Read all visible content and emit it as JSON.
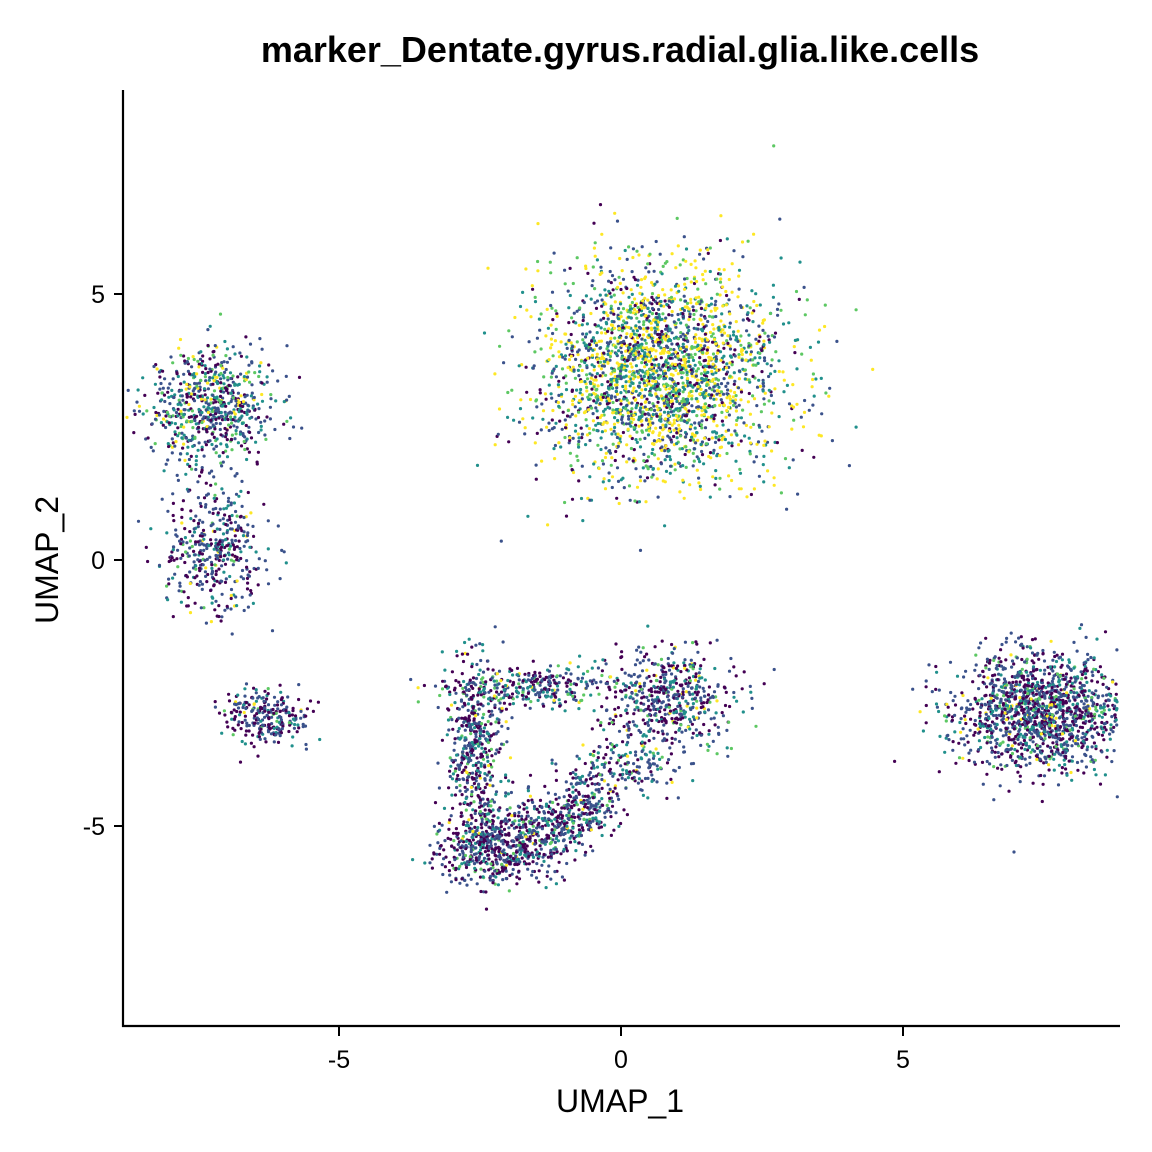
{
  "chart_data": {
    "type": "scatter",
    "title": "marker_Dentate.gyrus.radial.glia.like.cells",
    "xlabel": "UMAP_1",
    "ylabel": "UMAP_2",
    "xlim": [
      -8.8,
      8.8
    ],
    "ylim": [
      -8.8,
      8.8
    ],
    "xticks": [
      {
        "value": -5,
        "label": "-5"
      },
      {
        "value": 0,
        "label": "0"
      },
      {
        "value": 5,
        "label": "5"
      }
    ],
    "yticks": [
      {
        "value": -5,
        "label": "-5"
      },
      {
        "value": 0,
        "label": "0"
      },
      {
        "value": 5,
        "label": "5"
      }
    ],
    "grid": false,
    "legend": "none",
    "color_scale": "viridis",
    "palette": [
      "#440154",
      "#3b528b",
      "#21908c",
      "#5dc863",
      "#fde725"
    ],
    "clusters": [
      {
        "cx": -7.3,
        "cy": 2.9,
        "sx": 0.55,
        "sy": 0.55,
        "n": 700,
        "w": [
          0.22,
          0.33,
          0.25,
          0.12,
          0.08
        ]
      },
      {
        "cx": -7.2,
        "cy": 0.2,
        "sx": 0.45,
        "sy": 0.6,
        "n": 420,
        "w": [
          0.4,
          0.38,
          0.14,
          0.05,
          0.03
        ]
      },
      {
        "cx": -6.3,
        "cy": -2.95,
        "sx": 0.4,
        "sy": 0.25,
        "n": 260,
        "w": [
          0.42,
          0.38,
          0.15,
          0.03,
          0.02
        ]
      },
      {
        "cx": 0.7,
        "cy": 3.5,
        "sx": 1.05,
        "sy": 1.0,
        "n": 2600,
        "w": [
          0.12,
          0.2,
          0.22,
          0.16,
          0.3
        ]
      },
      {
        "cx": 7.4,
        "cy": -2.85,
        "sx": 0.75,
        "sy": 0.55,
        "n": 1500,
        "w": [
          0.34,
          0.38,
          0.18,
          0.07,
          0.03
        ]
      },
      {
        "cx": 0.9,
        "cy": -2.6,
        "sx": 0.55,
        "sy": 0.45,
        "n": 520,
        "w": [
          0.33,
          0.35,
          0.2,
          0.08,
          0.04
        ]
      },
      {
        "cx": -2.6,
        "cy": -3.5,
        "sx": 0.25,
        "sy": 0.9,
        "n": 500,
        "w": [
          0.35,
          0.35,
          0.2,
          0.07,
          0.03
        ]
      },
      {
        "cx": -2.2,
        "cy": -5.4,
        "sx": 0.55,
        "sy": 0.35,
        "n": 600,
        "w": [
          0.42,
          0.38,
          0.14,
          0.04,
          0.02
        ]
      },
      {
        "cx": -1.5,
        "cy": -2.4,
        "sx": 0.75,
        "sy": 0.2,
        "n": 300,
        "w": [
          0.3,
          0.35,
          0.22,
          0.09,
          0.04
        ]
      },
      {
        "cx": -0.6,
        "cy": -4.5,
        "sx": 0.3,
        "sy": 0.35,
        "n": 220,
        "w": [
          0.35,
          0.38,
          0.18,
          0.06,
          0.03
        ]
      },
      {
        "cx": -1.2,
        "cy": -5.0,
        "sx": 0.4,
        "sy": 0.3,
        "n": 200,
        "w": [
          0.35,
          0.38,
          0.18,
          0.06,
          0.03
        ]
      },
      {
        "cx": 0.2,
        "cy": -3.8,
        "sx": 0.4,
        "sy": 0.3,
        "n": 150,
        "w": [
          0.3,
          0.38,
          0.2,
          0.08,
          0.04
        ]
      }
    ]
  }
}
